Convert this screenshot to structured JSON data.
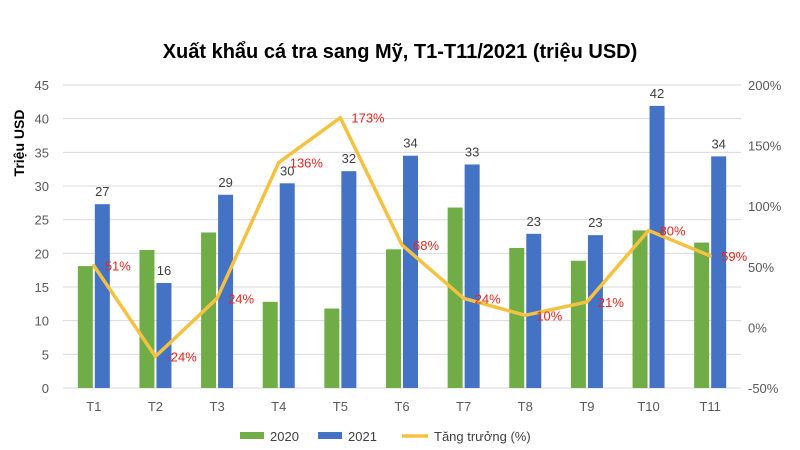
{
  "chart_data": {
    "type": "bar",
    "title": "Xuất khẩu cá tra sang Mỹ, T1-T11/2021 (triệu USD)",
    "ylabel": "Triệu USD",
    "xlabel": "",
    "categories": [
      "T1",
      "T2",
      "T3",
      "T4",
      "T5",
      "T6",
      "T7",
      "T8",
      "T9",
      "T10",
      "T11"
    ],
    "ylim": [
      0,
      45
    ],
    "yticks": [
      0,
      5,
      10,
      15,
      20,
      25,
      30,
      35,
      40,
      45
    ],
    "y2lim": [
      -50,
      200
    ],
    "y2ticks": [
      "-50%",
      "0%",
      "50%",
      "100%",
      "150%",
      "200%"
    ],
    "y2tick_values": [
      -50,
      0,
      50,
      100,
      150,
      200
    ],
    "series": [
      {
        "name": "2020",
        "kind": "bar",
        "color": "#70ad47",
        "values": [
          18.1,
          20.5,
          23.1,
          12.8,
          11.8,
          20.6,
          26.8,
          20.8,
          18.9,
          23.4,
          21.6
        ]
      },
      {
        "name": "2021",
        "kind": "bar",
        "color": "#4472c4",
        "values": [
          27.3,
          15.6,
          28.7,
          30.4,
          32.2,
          34.5,
          33.2,
          22.9,
          22.7,
          41.9,
          34.4
        ],
        "labels": [
          "27",
          "16",
          "29",
          "30",
          "32",
          "34",
          "33",
          "23",
          "23",
          "42",
          "34"
        ]
      },
      {
        "name": "Tăng trưởng (%)",
        "kind": "line",
        "axis": "right",
        "color": "#f4c140",
        "values": [
          51,
          -24,
          24,
          136,
          173,
          68,
          24,
          10,
          21,
          80,
          59
        ],
        "labels": [
          "51%",
          "-24%",
          "24%",
          "136%",
          "173%",
          "68%",
          "24%",
          "10%",
          "21%",
          "80%",
          "59%"
        ]
      }
    ],
    "grid": true,
    "legend_position": "bottom"
  }
}
